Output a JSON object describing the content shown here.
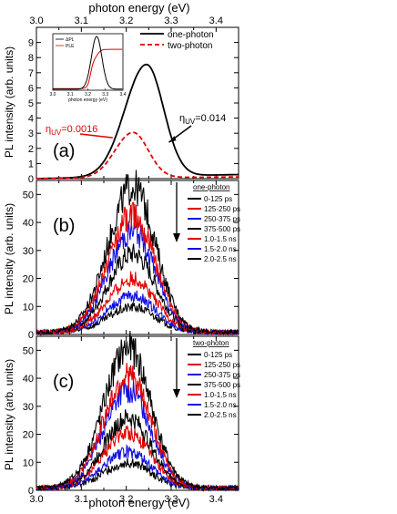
{
  "figure": {
    "top_xlabel": "photon energy (eV)",
    "bottom_xlabel": "photon energy (eV)",
    "ylabel": "PL intensity (arb. units)",
    "xlim": [
      3.0,
      3.45
    ],
    "xticks": [
      "3.0",
      "3.1",
      "3.2",
      "3.3",
      "3.4"
    ],
    "colors": {
      "black": "#000000",
      "red": "#e00000",
      "blue": "#1010e0"
    }
  },
  "chart_data": [
    {
      "type": "line",
      "panel_label": "(a)",
      "ylim": [
        0,
        10
      ],
      "yticks": [
        "0",
        "1",
        "2",
        "3",
        "4",
        "5",
        "6",
        "7",
        "8",
        "9"
      ],
      "legend": {
        "position": "top-right"
      },
      "series": [
        {
          "name": "one-photon",
          "color": "#000000",
          "dash": "solid",
          "peak_x": 3.245,
          "peak_y": 7.4,
          "width_low": 0.048,
          "width_high": 0.038
        },
        {
          "name": "two-photon",
          "color": "#e00000",
          "dash": "dashed",
          "peak_x": 3.215,
          "peak_y": 3.0,
          "width_low": 0.04,
          "width_high": 0.034
        }
      ],
      "annotations": [
        {
          "sub": "UV",
          "value": "=0.0016",
          "color": "#e00000",
          "points_to": [
            3.17,
            2.7
          ]
        },
        {
          "sub": "UV",
          "value": "=0.014",
          "color": "#000000",
          "points_to": [
            3.295,
            2.4
          ]
        }
      ],
      "inset": {
        "xlim": [
          3.0,
          3.4
        ],
        "ylim": [
          0,
          1.05
        ],
        "xticks": [
          "3.0",
          "3.1",
          "3.2",
          "3.3",
          "3.4"
        ],
        "xlabel": "photon energy (eV)",
        "series": [
          {
            "name": "ΔPL",
            "color": "#000000",
            "peak_x": 3.25,
            "width": 0.03
          },
          {
            "name": "PLE",
            "color": "#e00000",
            "edge_x": 3.235,
            "plateau": 0.76
          }
        ]
      }
    },
    {
      "type": "line",
      "panel_label": "(b)",
      "ylim": [
        0,
        55
      ],
      "yticks": [
        "0",
        "10",
        "20",
        "30",
        "40",
        "50"
      ],
      "legend": {
        "position": "top-right",
        "title": "one-photon"
      },
      "series": [
        {
          "name": "0-125 ps",
          "color": "#000000",
          "peak": 52
        },
        {
          "name": "125-250 ps",
          "color": "#e00000",
          "peak": 42
        },
        {
          "name": "250-375 ps",
          "color": "#1010e0",
          "peak": 36
        },
        {
          "name": "375-500 ps",
          "color": "#000000",
          "peak": 28
        },
        {
          "name": "1.0-1.5 ns",
          "color": "#e00000",
          "peak": 19
        },
        {
          "name": "1.5-2.0 ns",
          "color": "#1010e0",
          "peak": 13
        },
        {
          "name": "2.0-2.5 ns",
          "color": "#000000",
          "peak": 9
        }
      ],
      "center_x": 3.215
    },
    {
      "type": "line",
      "panel_label": "(c)",
      "ylim": [
        0,
        55
      ],
      "yticks": [
        "0",
        "10",
        "20",
        "30",
        "40",
        "50"
      ],
      "legend": {
        "position": "top-right",
        "title": "two-photon"
      },
      "series": [
        {
          "name": "0-125 ps",
          "color": "#000000",
          "peak": 50
        },
        {
          "name": "125-250 ps",
          "color": "#e00000",
          "peak": 40
        },
        {
          "name": "250-375 ps",
          "color": "#1010e0",
          "peak": 35
        },
        {
          "name": "375-500 ps",
          "color": "#000000",
          "peak": 25
        },
        {
          "name": "1.0-1.5 ns",
          "color": "#e00000",
          "peak": 20
        },
        {
          "name": "1.5-2.0 ns",
          "color": "#1010e0",
          "peak": 13
        },
        {
          "name": "2.0-2.5 ns",
          "color": "#000000",
          "peak": 9
        }
      ],
      "center_x": 3.205
    }
  ]
}
